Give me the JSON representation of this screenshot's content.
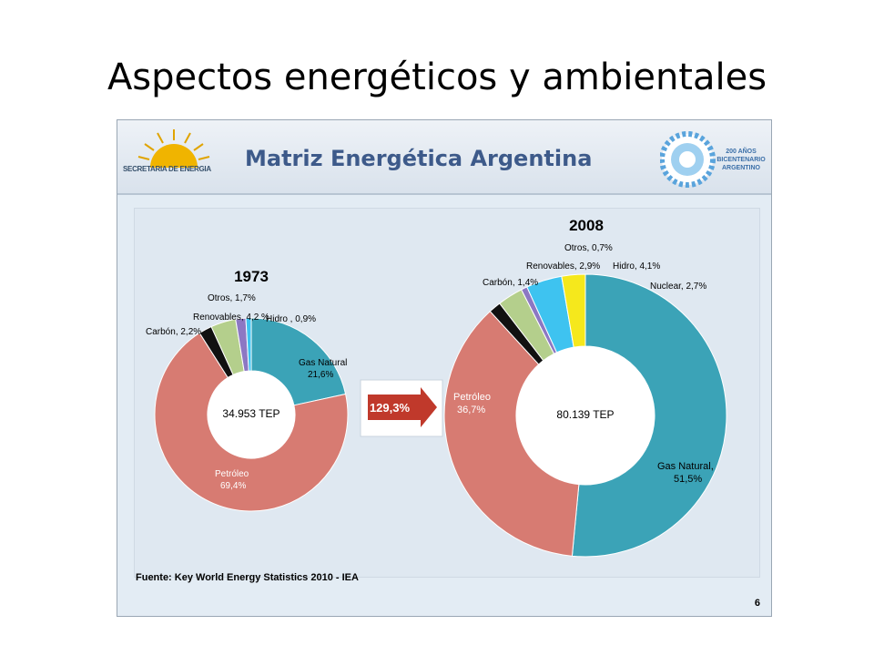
{
  "slide_title": "Aspectos energéticos y ambientales",
  "banner": {
    "title": "Matriz Energética Argentina",
    "left_logo_text": "SECRETARIA DE ENERGIA",
    "right_logo_lines": [
      "200 AÑOS",
      "BICENTENARIO",
      "ARGENTINO"
    ]
  },
  "growth_label": "129,3%",
  "source_note": "Fuente: Key World Energy Statistics 2010 - IEA",
  "page_number": "6",
  "colors": {
    "gas": "#3ba3b7",
    "petroleo": "#d77b72",
    "carbon": "#111111",
    "renovables": "#b4cf8c",
    "hidro": "#3ec3f0",
    "nuclear": "#f5e81c",
    "otros": "#8c78c3",
    "arrow": "#c0392b"
  },
  "chart_data": [
    {
      "type": "pie",
      "title": "1973",
      "center_label": "34.953 TEP",
      "slices": [
        {
          "name": "Gas Natural",
          "value": 21.6,
          "label": "21,6%",
          "color_key": "gas"
        },
        {
          "name": "Petróleo",
          "value": 69.4,
          "label": "69,4%",
          "color_key": "petroleo"
        },
        {
          "name": "Carbón",
          "value": 2.2,
          "label": "2,2%",
          "color_key": "carbon"
        },
        {
          "name": "Renovables",
          "value": 4.2,
          "label": "4,2 %",
          "color_key": "renovables"
        },
        {
          "name": "Otros",
          "value": 1.7,
          "label": "1,7%",
          "color_key": "otros"
        },
        {
          "name": "Hidro",
          "value": 0.9,
          "label": "0,9%",
          "color_key": "hidro"
        }
      ]
    },
    {
      "type": "pie",
      "title": "2008",
      "center_label": "80.139 TEP",
      "slices": [
        {
          "name": "Gas Natural",
          "value": 51.5,
          "label": "51,5%",
          "color_key": "gas"
        },
        {
          "name": "Petróleo",
          "value": 36.7,
          "label": "36,7%",
          "color_key": "petroleo"
        },
        {
          "name": "Carbón",
          "value": 1.4,
          "label": "1,4%",
          "color_key": "carbon"
        },
        {
          "name": "Renovables",
          "value": 2.9,
          "label": "2,9%",
          "color_key": "renovables"
        },
        {
          "name": "Otros",
          "value": 0.7,
          "label": "0,7%",
          "color_key": "otros"
        },
        {
          "name": "Hidro",
          "value": 4.1,
          "label": "4,1%",
          "color_key": "hidro"
        },
        {
          "name": "Nuclear",
          "value": 2.7,
          "label": "2,7%",
          "color_key": "nuclear"
        }
      ]
    }
  ]
}
